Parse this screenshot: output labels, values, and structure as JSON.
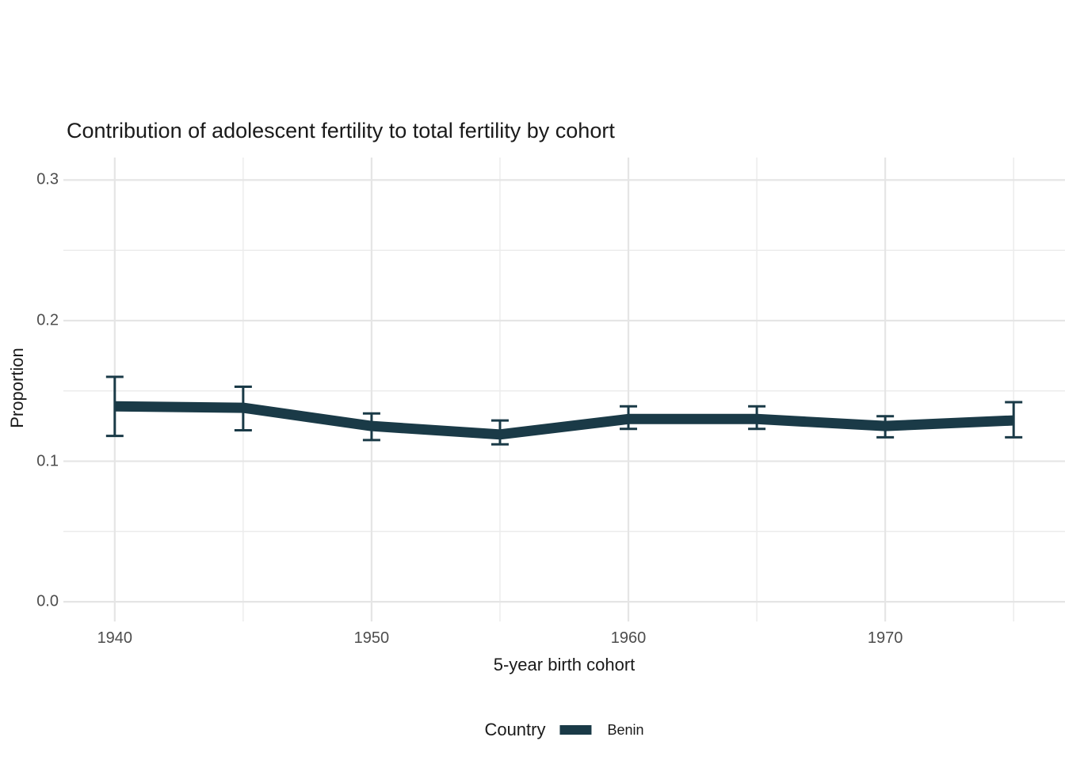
{
  "chart_data": {
    "type": "line",
    "title": "Contribution of adolescent fertility to total fertility by cohort",
    "xlabel": "5-year birth cohort",
    "ylabel": "Proportion",
    "x": [
      1940,
      1945,
      1950,
      1955,
      1960,
      1965,
      1970,
      1975
    ],
    "series": [
      {
        "name": "Benin",
        "color": "#1a3a47",
        "values": [
          0.139,
          0.138,
          0.125,
          0.119,
          0.13,
          0.13,
          0.125,
          0.129
        ],
        "ci_lower": [
          0.118,
          0.122,
          0.115,
          0.112,
          0.123,
          0.123,
          0.117,
          0.117
        ],
        "ci_upper": [
          0.16,
          0.153,
          0.134,
          0.129,
          0.139,
          0.139,
          0.132,
          0.142
        ]
      }
    ],
    "error_bars": true,
    "x_ticks": [
      1940,
      1950,
      1960,
      1970
    ],
    "x_minor_ticks": [
      1945,
      1955,
      1965,
      1975
    ],
    "y_ticks": [
      0.0,
      0.1,
      0.2,
      0.3
    ],
    "y_tick_labels": [
      "0.0",
      "0.1",
      "0.2",
      "0.3"
    ],
    "y_minor_ticks": [
      0.05,
      0.15,
      0.25
    ],
    "xlim": [
      1938,
      1977
    ],
    "ylim": [
      -0.014,
      0.316
    ],
    "grid": true,
    "legend": {
      "title": "Country",
      "position": "bottom",
      "entries": [
        {
          "label": "Benin",
          "color": "#1a3a47"
        }
      ]
    }
  },
  "colors": {
    "background": "#ffffff",
    "grid_major": "#e5e5e5",
    "grid_minor": "#ececec",
    "tick_label": "#4d4d4d",
    "text": "#1a1a1a",
    "series_benin": "#1a3a47"
  }
}
